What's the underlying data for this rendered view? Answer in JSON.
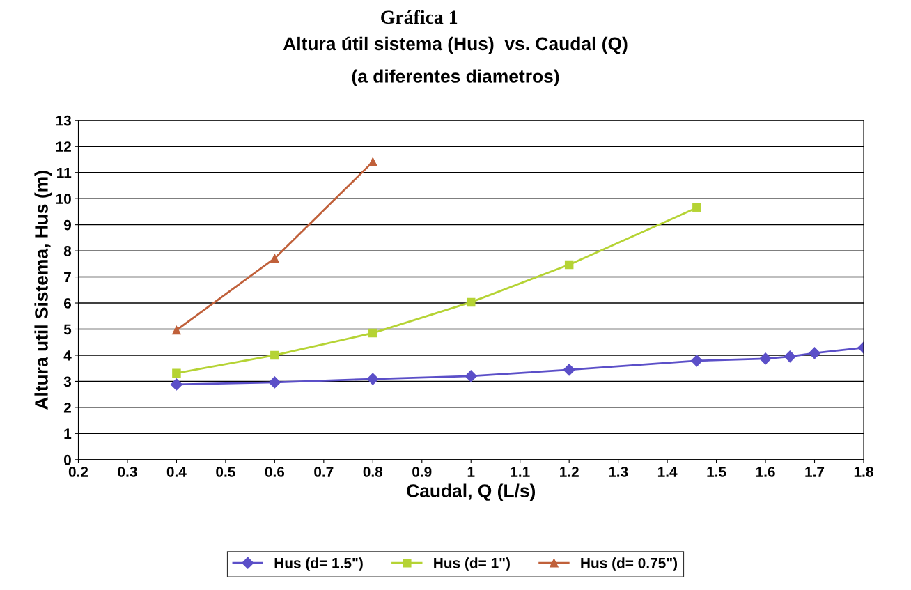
{
  "chart_data": {
    "type": "line",
    "title": "Altura útil sistema (Hus)  vs. Caudal (Q)",
    "subtitle": "(a diferentes diametros)",
    "xlabel": "Caudal, Q (L/s)",
    "ylabel": "Altura util Sistema, Hus (m)",
    "annotations": [
      "Gráfica 1"
    ],
    "series": [
      {
        "name": "Hus (d= 1.5\")",
        "color": "#5b4fc8",
        "marker": "diamond",
        "x": [
          0.4,
          0.6,
          0.8,
          1.0,
          1.2,
          1.46,
          1.6,
          1.65,
          1.7,
          1.8
        ],
        "values": [
          2.88,
          2.96,
          3.09,
          3.2,
          3.44,
          3.79,
          3.87,
          3.95,
          4.08,
          4.29
        ]
      },
      {
        "name": "Hus (d= 1\")",
        "color": "#b5d334",
        "marker": "square",
        "x": [
          0.4,
          0.6,
          0.8,
          1.0,
          1.2,
          1.46
        ],
        "values": [
          3.31,
          4.0,
          4.85,
          6.03,
          7.47,
          9.65
        ]
      },
      {
        "name": "Hus (d= 0.75\")",
        "color": "#c0603a",
        "marker": "triangle",
        "x": [
          0.4,
          0.6,
          0.8
        ],
        "values": [
          4.96,
          7.71,
          11.41
        ]
      }
    ],
    "xlim": [
      0.2,
      1.8
    ],
    "xticks": [
      0.2,
      0.3,
      0.4,
      0.5,
      0.6,
      0.7,
      0.8,
      0.9,
      1,
      1.1,
      1.2,
      1.3,
      1.4,
      1.5,
      1.6,
      1.7,
      1.8
    ],
    "ylim": [
      0,
      13
    ],
    "yticks": [
      0,
      1,
      2,
      3,
      4,
      5,
      6,
      7,
      8,
      9,
      10,
      11,
      12,
      13
    ],
    "grid": "y",
    "legend": "bottom",
    "line_style": "solid"
  }
}
